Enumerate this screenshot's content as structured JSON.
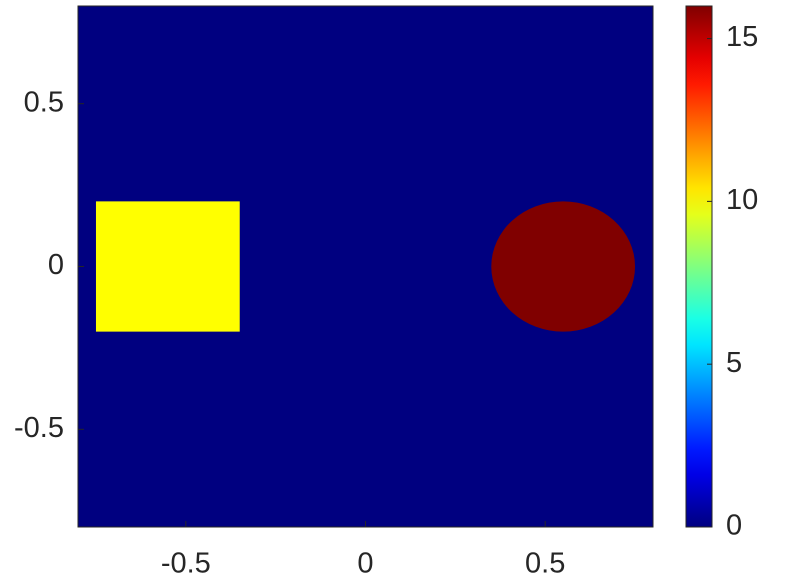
{
  "chart_data": {
    "type": "image",
    "colormap": "jet",
    "background_value": 0,
    "shapes": [
      {
        "shape": "rect",
        "x": [
          -0.75,
          -0.35
        ],
        "y": [
          -0.2,
          0.2
        ],
        "value": 10
      },
      {
        "shape": "circle",
        "center": [
          0.55,
          0
        ],
        "radius": 0.2,
        "value": 16
      }
    ],
    "xlim": [
      -0.8,
      0.8
    ],
    "xticks": [
      -0.5,
      0,
      0.5
    ],
    "ylim": [
      -0.8,
      0.8
    ],
    "yticks": [
      -0.5,
      0,
      0.5
    ],
    "clim": [
      0,
      16
    ],
    "cticks": [
      0,
      5,
      10,
      15
    ],
    "colorbar": true
  }
}
